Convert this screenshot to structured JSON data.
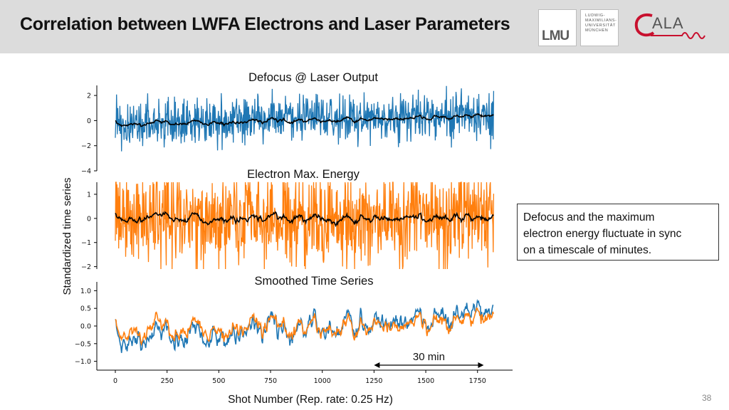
{
  "slide": {
    "title": "Correlation between LWFA Electrons and Laser Parameters",
    "page_number": "38",
    "callout_lines": [
      "Defocus and the maximum",
      "electron energy fluctuate in sync",
      "on a timescale of minutes."
    ],
    "logos": {
      "lmu_letters": "LMU",
      "lmu_lines": [
        "LUDWIG-",
        "MAXIMILIANS-",
        "UNIVERSITÄT",
        "MÜNCHEN"
      ],
      "cala_letters": "ALA"
    }
  },
  "colors": {
    "blue": "#1f77b4",
    "orange": "#ff7f0e",
    "black": "#000000",
    "header_bg": "#dcdcdc"
  },
  "chart_data": [
    {
      "type": "line",
      "title": "Defocus @ Laser Output",
      "ylim": [
        -4,
        2.8
      ],
      "y_ticks": [
        2,
        0,
        -2,
        -4
      ],
      "y_tick_labels": [
        "2",
        "0",
        "−2",
        "−4"
      ],
      "x_range": [
        0,
        1830
      ],
      "series": [
        {
          "role": "raw",
          "color": "#1f77b4",
          "amplitude": 1.0,
          "mean": 0.0,
          "trend": [
            -0.1,
            0.35
          ]
        },
        {
          "role": "smoothed",
          "color": "#000000",
          "amplitude": 0.3,
          "mean": 0.0,
          "trend": [
            -0.3,
            0.35
          ]
        }
      ]
    },
    {
      "type": "line",
      "title": "Electron Max. Energy",
      "ylim": [
        -2.1,
        1.5
      ],
      "y_ticks": [
        1,
        0,
        -1,
        -2
      ],
      "y_tick_labels": [
        "1",
        "0",
        "−1",
        "−2"
      ],
      "x_range": [
        0,
        1830
      ],
      "series": [
        {
          "role": "raw",
          "color": "#ff7f0e",
          "amplitude": 1.0,
          "mean": 0.0,
          "trend": [
            0,
            0
          ]
        },
        {
          "role": "smoothed",
          "color": "#000000",
          "amplitude": 0.35,
          "mean": 0.0,
          "trend": [
            0,
            0
          ]
        }
      ]
    },
    {
      "type": "line",
      "title": "Smoothed Time Series",
      "ylim": [
        -1.25,
        1.25
      ],
      "y_ticks": [
        1.0,
        0.5,
        0.0,
        -0.5,
        -1.0
      ],
      "y_tick_labels": [
        "1.0",
        "0.5",
        "0.0",
        "−0.5",
        "−1.0"
      ],
      "x_range": [
        0,
        1830
      ],
      "x_ticks": [
        0,
        250,
        500,
        750,
        1000,
        1250,
        1500,
        1750
      ],
      "xlabel": "Shot Number (Rep. rate: 0.25 Hz)",
      "annotation": {
        "text": "30 min",
        "x_from": 1250,
        "x_to": 1780
      },
      "series": [
        {
          "role": "defocus",
          "color": "#1f77b4",
          "amplitude": 0.45,
          "trend": [
            -0.4,
            0.35
          ]
        },
        {
          "role": "energy",
          "color": "#ff7f0e",
          "amplitude": 0.4,
          "trend": [
            -0.15,
            0.15
          ]
        }
      ]
    }
  ],
  "shared_ylabel": "Standardized time series"
}
